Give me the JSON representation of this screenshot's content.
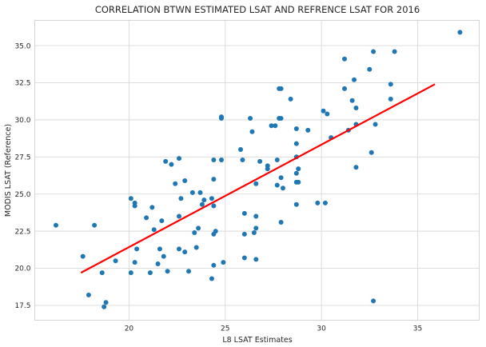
{
  "chart_data": {
    "type": "scatter",
    "title": "CORRELATION BTWN ESTIMATED LSAT AND REFRENCE LSAT FOR 2016",
    "xlabel": "L8 LSAT Estimates",
    "ylabel": "MODIS LSAT (Reference)",
    "xlim": [
      15.1,
      38.2
    ],
    "ylim": [
      16.5,
      36.7
    ],
    "xticks": [
      20,
      25,
      30,
      35
    ],
    "yticks": [
      17.5,
      20.0,
      22.5,
      25.0,
      27.5,
      30.0,
      32.5,
      35.0
    ],
    "xtick_labels": [
      "20",
      "25",
      "30",
      "35"
    ],
    "ytick_labels": [
      "17.5",
      "20.0",
      "22.5",
      "25.0",
      "27.5",
      "30.0",
      "32.5",
      "35.0"
    ],
    "grid": true,
    "point_color": "#1f77b4",
    "fit_color": "#ff0000",
    "fit_line": {
      "x": [
        17.5,
        35.9
      ],
      "y": [
        19.7,
        32.4
      ]
    },
    "points": [
      [
        16.2,
        22.9
      ],
      [
        17.6,
        20.8
      ],
      [
        17.9,
        18.2
      ],
      [
        18.2,
        22.9
      ],
      [
        18.6,
        19.7
      ],
      [
        18.7,
        17.4
      ],
      [
        18.8,
        17.7
      ],
      [
        19.3,
        20.5
      ],
      [
        20.1,
        24.7
      ],
      [
        20.1,
        19.7
      ],
      [
        20.3,
        24.4
      ],
      [
        20.3,
        24.2
      ],
      [
        20.3,
        20.4
      ],
      [
        20.4,
        21.3
      ],
      [
        20.9,
        23.4
      ],
      [
        21.1,
        19.7
      ],
      [
        21.2,
        24.1
      ],
      [
        21.3,
        22.6
      ],
      [
        21.5,
        20.3
      ],
      [
        21.6,
        21.3
      ],
      [
        21.7,
        23.2
      ],
      [
        21.8,
        20.8
      ],
      [
        21.9,
        27.2
      ],
      [
        22.0,
        19.8
      ],
      [
        22.2,
        27.0
      ],
      [
        22.4,
        25.7
      ],
      [
        22.6,
        27.4
      ],
      [
        22.6,
        23.5
      ],
      [
        22.6,
        21.3
      ],
      [
        22.7,
        24.7
      ],
      [
        22.9,
        25.9
      ],
      [
        22.9,
        21.1
      ],
      [
        23.1,
        19.8
      ],
      [
        23.3,
        25.1
      ],
      [
        23.4,
        22.4
      ],
      [
        23.5,
        21.4
      ],
      [
        23.6,
        22.7
      ],
      [
        23.7,
        25.1
      ],
      [
        23.8,
        24.3
      ],
      [
        23.9,
        24.6
      ],
      [
        24.3,
        24.7
      ],
      [
        24.4,
        26.0
      ],
      [
        24.4,
        27.3
      ],
      [
        24.4,
        24.2
      ],
      [
        24.4,
        22.3
      ],
      [
        24.4,
        20.2
      ],
      [
        24.3,
        19.3
      ],
      [
        24.5,
        22.5
      ],
      [
        24.8,
        30.1
      ],
      [
        24.8,
        30.2
      ],
      [
        24.8,
        27.3
      ],
      [
        24.9,
        20.4
      ],
      [
        25.8,
        28.0
      ],
      [
        25.9,
        27.3
      ],
      [
        26.0,
        23.7
      ],
      [
        26.0,
        22.3
      ],
      [
        26.0,
        20.7
      ],
      [
        26.3,
        30.1
      ],
      [
        26.4,
        29.2
      ],
      [
        26.5,
        22.4
      ],
      [
        26.6,
        25.7
      ],
      [
        26.6,
        23.5
      ],
      [
        26.6,
        22.7
      ],
      [
        26.6,
        20.6
      ],
      [
        26.8,
        27.2
      ],
      [
        27.2,
        26.9
      ],
      [
        27.2,
        26.7
      ],
      [
        27.4,
        29.6
      ],
      [
        27.6,
        29.6
      ],
      [
        27.7,
        27.3
      ],
      [
        27.7,
        25.6
      ],
      [
        27.8,
        32.1
      ],
      [
        27.9,
        32.1
      ],
      [
        27.8,
        30.1
      ],
      [
        27.9,
        30.1
      ],
      [
        27.9,
        26.1
      ],
      [
        27.9,
        23.1
      ],
      [
        28.0,
        25.4
      ],
      [
        28.4,
        31.4
      ],
      [
        28.7,
        29.4
      ],
      [
        28.7,
        28.4
      ],
      [
        28.7,
        27.5
      ],
      [
        28.7,
        26.4
      ],
      [
        28.8,
        26.7
      ],
      [
        28.7,
        25.8
      ],
      [
        28.7,
        24.3
      ],
      [
        28.8,
        25.8
      ],
      [
        29.3,
        29.3
      ],
      [
        29.8,
        24.4
      ],
      [
        30.1,
        30.6
      ],
      [
        30.3,
        30.4
      ],
      [
        30.2,
        24.4
      ],
      [
        30.5,
        28.8
      ],
      [
        31.2,
        34.1
      ],
      [
        31.2,
        32.1
      ],
      [
        31.4,
        29.3
      ],
      [
        31.6,
        31.3
      ],
      [
        31.7,
        32.7
      ],
      [
        31.8,
        30.8
      ],
      [
        31.8,
        29.7
      ],
      [
        31.8,
        26.8
      ],
      [
        32.5,
        33.4
      ],
      [
        32.6,
        27.8
      ],
      [
        32.7,
        34.6
      ],
      [
        32.8,
        29.7
      ],
      [
        32.7,
        17.8
      ],
      [
        33.6,
        32.4
      ],
      [
        33.6,
        31.4
      ],
      [
        33.8,
        34.6
      ],
      [
        37.2,
        35.9
      ]
    ]
  }
}
